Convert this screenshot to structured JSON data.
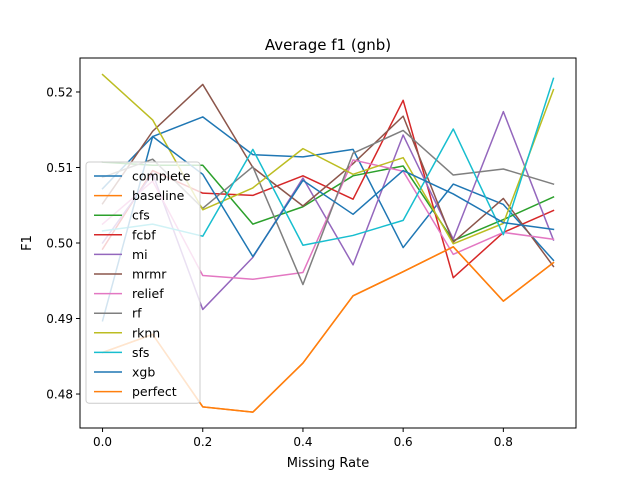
{
  "chart_data": {
    "type": "line",
    "title": "Average f1 (gnb)",
    "xlabel": "Missing Rate",
    "ylabel": "F1",
    "xlim": [
      -0.045,
      0.945
    ],
    "ylim": [
      0.4755,
      0.5245
    ],
    "xticks": [
      0.0,
      0.2,
      0.4,
      0.6,
      0.8
    ],
    "xtick_labels": [
      "0.0",
      "0.2",
      "0.4",
      "0.6",
      "0.8"
    ],
    "yticks": [
      0.48,
      0.49,
      0.5,
      0.51,
      0.52
    ],
    "ytick_labels": [
      "0.48",
      "0.49",
      "0.50",
      "0.51",
      "0.52"
    ],
    "grid": false,
    "legend_position": "lower-left",
    "x": [
      0.0,
      0.1,
      0.2,
      0.3,
      0.4,
      0.5,
      0.6,
      0.7,
      0.8,
      0.9
    ],
    "series": [
      {
        "name": "complete",
        "color": "#1f77b4",
        "values": [
          0.5072,
          0.5141,
          0.5167,
          0.5117,
          0.5114,
          0.5124,
          0.4994,
          0.5078,
          0.5051,
          0.4977
        ]
      },
      {
        "name": "baseline",
        "color": "#ff7f0e",
        "values": [
          0.4855,
          0.4879,
          0.4783,
          0.4776,
          0.4841,
          0.493,
          0.4962,
          0.4995,
          0.4923,
          0.4974
        ]
      },
      {
        "name": "cfs",
        "color": "#2ca02c",
        "values": [
          0.5107,
          0.5103,
          0.5103,
          0.5025,
          0.5048,
          0.5089,
          0.5102,
          0.5003,
          0.5031,
          0.5061
        ]
      },
      {
        "name": "fcbf",
        "color": "#d62728",
        "values": [
          0.4992,
          0.5096,
          0.5066,
          0.5063,
          0.5089,
          0.5058,
          0.5189,
          0.4954,
          0.5014,
          0.5043
        ]
      },
      {
        "name": "mi",
        "color": "#9467bd",
        "values": [
          0.5,
          0.5092,
          0.4912,
          0.4981,
          0.5086,
          0.4971,
          0.5143,
          0.5005,
          0.5174,
          0.5004
        ]
      },
      {
        "name": "mrmr",
        "color": "#8c564b",
        "values": [
          0.5052,
          0.5148,
          0.521,
          0.51,
          0.5049,
          0.5105,
          0.5168,
          0.5001,
          0.5059,
          0.4969
        ]
      },
      {
        "name": "relief",
        "color": "#e377c2",
        "values": [
          0.5025,
          0.5082,
          0.4957,
          0.4952,
          0.4961,
          0.511,
          0.5095,
          0.4985,
          0.5014,
          0.5005
        ]
      },
      {
        "name": "rf",
        "color": "#7f7f7f",
        "values": [
          0.5087,
          0.5111,
          0.5046,
          0.5101,
          0.4945,
          0.5119,
          0.5149,
          0.509,
          0.5098,
          0.5078
        ]
      },
      {
        "name": "rknn",
        "color": "#bcbd22",
        "values": [
          0.5223,
          0.5163,
          0.5044,
          0.5073,
          0.5125,
          0.5091,
          0.5113,
          0.4999,
          0.5026,
          0.5203
        ]
      },
      {
        "name": "sfs",
        "color": "#17becf",
        "values": [
          0.5016,
          0.5025,
          0.5009,
          0.5124,
          0.4997,
          0.501,
          0.503,
          0.5151,
          0.5011,
          0.5218
        ]
      },
      {
        "name": "xgb",
        "color": "#1f77b4",
        "values": [
          0.4897,
          0.5141,
          0.5091,
          0.4982,
          0.5083,
          0.5038,
          0.5096,
          0.5065,
          0.5027,
          0.5018
        ]
      },
      {
        "name": "perfect",
        "color": "#ff7f0e",
        "values": [
          0.4855,
          0.4879,
          0.4783,
          0.4776,
          0.4841,
          0.493,
          0.4962,
          0.4995,
          0.4923,
          0.4974
        ]
      }
    ]
  }
}
